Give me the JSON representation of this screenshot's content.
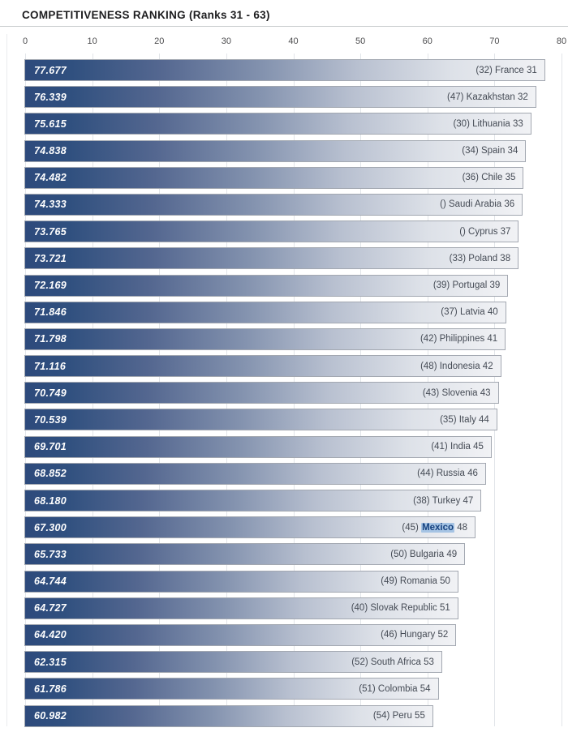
{
  "header": {
    "title": "COMPETITIVENESS RANKING (Ranks 31 - 63)"
  },
  "colors": {
    "bar_gradient_start": "#2d4a7c",
    "bar_gradient_end": "#f1f2f5",
    "bar_border": "#a3a8b1",
    "score_text": "#ffffff",
    "label_text": "#454b55",
    "gridline": "#e2e5e9",
    "highlight_bg": "#a6c4e4",
    "highlight_text": "#16427f"
  },
  "chart_data": {
    "type": "bar",
    "orientation": "horizontal",
    "title": "COMPETITIVENESS RANKING (Ranks 31 - 63)",
    "xlabel": "",
    "ylabel": "",
    "xlim": [
      0,
      80
    ],
    "x_ticks": [
      0,
      10,
      20,
      30,
      40,
      50,
      60,
      70,
      80
    ],
    "grid": true,
    "legend": false,
    "rows": [
      {
        "score": 77.677,
        "score_label": "77.677",
        "label": "(32) France 31",
        "prev_rank": "(32)",
        "country": "France",
        "rank": 31
      },
      {
        "score": 76.339,
        "score_label": "76.339",
        "label": "(47) Kazakhstan 32",
        "prev_rank": "(47)",
        "country": "Kazakhstan",
        "rank": 32
      },
      {
        "score": 75.615,
        "score_label": "75.615",
        "label": "(30) Lithuania 33",
        "prev_rank": "(30)",
        "country": "Lithuania",
        "rank": 33
      },
      {
        "score": 74.838,
        "score_label": "74.838",
        "label": "(34) Spain 34",
        "prev_rank": "(34)",
        "country": "Spain",
        "rank": 34
      },
      {
        "score": 74.482,
        "score_label": "74.482",
        "label": "(36) Chile 35",
        "prev_rank": "(36)",
        "country": "Chile",
        "rank": 35
      },
      {
        "score": 74.333,
        "score_label": "74.333",
        "label": "() Saudi Arabia 36",
        "prev_rank": "()",
        "country": "Saudi Arabia",
        "rank": 36
      },
      {
        "score": 73.765,
        "score_label": "73.765",
        "label": "() Cyprus 37",
        "prev_rank": "()",
        "country": "Cyprus",
        "rank": 37
      },
      {
        "score": 73.721,
        "score_label": "73.721",
        "label": "(33) Poland 38",
        "prev_rank": "(33)",
        "country": "Poland",
        "rank": 38
      },
      {
        "score": 72.169,
        "score_label": "72.169",
        "label": "(39) Portugal 39",
        "prev_rank": "(39)",
        "country": "Portugal",
        "rank": 39
      },
      {
        "score": 71.846,
        "score_label": "71.846",
        "label": "(37) Latvia 40",
        "prev_rank": "(37)",
        "country": "Latvia",
        "rank": 40
      },
      {
        "score": 71.798,
        "score_label": "71.798",
        "label": "(42) Philippines 41",
        "prev_rank": "(42)",
        "country": "Philippines",
        "rank": 41
      },
      {
        "score": 71.116,
        "score_label": "71.116",
        "label": "(48) Indonesia 42",
        "prev_rank": "(48)",
        "country": "Indonesia",
        "rank": 42
      },
      {
        "score": 70.749,
        "score_label": "70.749",
        "label": "(43) Slovenia 43",
        "prev_rank": "(43)",
        "country": "Slovenia",
        "rank": 43
      },
      {
        "score": 70.539,
        "score_label": "70.539",
        "label": "(35) Italy 44",
        "prev_rank": "(35)",
        "country": "Italy",
        "rank": 44
      },
      {
        "score": 69.701,
        "score_label": "69.701",
        "label": "(41) India 45",
        "prev_rank": "(41)",
        "country": "India",
        "rank": 45
      },
      {
        "score": 68.852,
        "score_label": "68.852",
        "label": "(44) Russia 46",
        "prev_rank": "(44)",
        "country": "Russia",
        "rank": 46
      },
      {
        "score": 68.18,
        "score_label": "68.180",
        "label": "(38) Turkey 47",
        "prev_rank": "(38)",
        "country": "Turkey",
        "rank": 47
      },
      {
        "score": 67.3,
        "score_label": "67.300",
        "label": "(45) Mexico 48",
        "prev_rank": "(45)",
        "country": "Mexico",
        "rank": 48,
        "highlight": {
          "prefix": "(45) ",
          "text": "Mexico",
          "suffix": " 48"
        }
      },
      {
        "score": 65.733,
        "score_label": "65.733",
        "label": "(50) Bulgaria 49",
        "prev_rank": "(50)",
        "country": "Bulgaria",
        "rank": 49
      },
      {
        "score": 64.744,
        "score_label": "64.744",
        "label": "(49) Romania 50",
        "prev_rank": "(49)",
        "country": "Romania",
        "rank": 50
      },
      {
        "score": 64.727,
        "score_label": "64.727",
        "label": "(40) Slovak Republic 51",
        "prev_rank": "(40)",
        "country": "Slovak Republic",
        "rank": 51
      },
      {
        "score": 64.42,
        "score_label": "64.420",
        "label": "(46) Hungary 52",
        "prev_rank": "(46)",
        "country": "Hungary",
        "rank": 52
      },
      {
        "score": 62.315,
        "score_label": "62.315",
        "label": "(52) South Africa 53",
        "prev_rank": "(52)",
        "country": "South Africa",
        "rank": 53
      },
      {
        "score": 61.786,
        "score_label": "61.786",
        "label": "(51) Colombia 54",
        "prev_rank": "(51)",
        "country": "Colombia",
        "rank": 54
      },
      {
        "score": 60.982,
        "score_label": "60.982",
        "label": "(54) Peru 55",
        "prev_rank": "(54)",
        "country": "Peru",
        "rank": 55
      }
    ]
  }
}
